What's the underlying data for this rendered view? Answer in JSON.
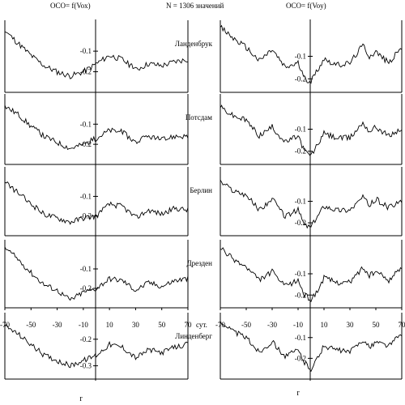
{
  "header": {
    "left": "OCO= f(Vox)",
    "center": "N = 1306 значений",
    "right": "OCO= f(Voy)"
  },
  "footer": {
    "left": "r",
    "right": "r"
  },
  "chart_data": [
    {
      "type": "line",
      "panel": "left",
      "x_unit": "сут.",
      "x_ticks": [
        -70,
        -50,
        -30,
        -10,
        10,
        30,
        50,
        70
      ],
      "x_tick_labels": [
        "-70",
        "-50",
        "-30",
        "-10",
        "10",
        "30",
        "50",
        "70"
      ],
      "rows": [
        {
          "station": "Ланденбрук",
          "y_ticks": [
            -0.1,
            -0.2
          ],
          "y_tick_labels": [
            "-0.1",
            "-0.2"
          ],
          "ylim": [
            -0.3,
            0.05
          ],
          "anchors": [
            [
              -70,
              0.0
            ],
            [
              -60,
              -0.06
            ],
            [
              -50,
              -0.12
            ],
            [
              -40,
              -0.17
            ],
            [
              -30,
              -0.2
            ],
            [
              -20,
              -0.22
            ],
            [
              -10,
              -0.2
            ],
            [
              0,
              -0.16
            ],
            [
              10,
              -0.12
            ],
            [
              20,
              -0.14
            ],
            [
              30,
              -0.19
            ],
            [
              40,
              -0.16
            ],
            [
              50,
              -0.17
            ],
            [
              60,
              -0.15
            ],
            [
              70,
              -0.14
            ]
          ]
        },
        {
          "station": "Потсдам",
          "y_ticks": [
            -0.1,
            -0.2
          ],
          "y_tick_labels": [
            "-0.1",
            "-0.2"
          ],
          "ylim": [
            -0.3,
            0.05
          ],
          "anchors": [
            [
              -70,
              -0.01
            ],
            [
              -60,
              -0.05
            ],
            [
              -50,
              -0.11
            ],
            [
              -40,
              -0.16
            ],
            [
              -30,
              -0.19
            ],
            [
              -20,
              -0.22
            ],
            [
              -10,
              -0.2
            ],
            [
              0,
              -0.17
            ],
            [
              10,
              -0.13
            ],
            [
              20,
              -0.14
            ],
            [
              30,
              -0.19
            ],
            [
              40,
              -0.16
            ],
            [
              50,
              -0.18
            ],
            [
              60,
              -0.16
            ],
            [
              70,
              -0.16
            ]
          ]
        },
        {
          "station": "Берлин",
          "y_ticks": [
            -0.1,
            -0.2
          ],
          "y_tick_labels": [
            "-0.1",
            "-0.2"
          ],
          "ylim": [
            -0.3,
            0.05
          ],
          "anchors": [
            [
              -70,
              -0.03
            ],
            [
              -60,
              -0.08
            ],
            [
              -50,
              -0.14
            ],
            [
              -40,
              -0.19
            ],
            [
              -30,
              -0.21
            ],
            [
              -20,
              -0.23
            ],
            [
              -10,
              -0.21
            ],
            [
              0,
              -0.2
            ],
            [
              10,
              -0.14
            ],
            [
              20,
              -0.15
            ],
            [
              30,
              -0.21
            ],
            [
              40,
              -0.17
            ],
            [
              50,
              -0.19
            ],
            [
              60,
              -0.16
            ],
            [
              70,
              -0.17
            ]
          ]
        },
        {
          "station": "Дрезден",
          "y_ticks": [
            -0.1,
            -0.2
          ],
          "y_tick_labels": [
            "-0.1",
            "-0.2"
          ],
          "ylim": [
            -0.3,
            0.05
          ],
          "anchors": [
            [
              -70,
              0.01
            ],
            [
              -60,
              -0.05
            ],
            [
              -50,
              -0.12
            ],
            [
              -40,
              -0.18
            ],
            [
              -30,
              -0.21
            ],
            [
              -20,
              -0.26
            ],
            [
              -10,
              -0.22
            ],
            [
              0,
              -0.2
            ],
            [
              10,
              -0.15
            ],
            [
              20,
              -0.16
            ],
            [
              30,
              -0.21
            ],
            [
              40,
              -0.17
            ],
            [
              50,
              -0.19
            ],
            [
              60,
              -0.16
            ],
            [
              70,
              -0.15
            ]
          ]
        },
        {
          "station": "Линденберг",
          "y_ticks": [
            -0.2,
            -0.3
          ],
          "y_tick_labels": [
            "-0.2",
            "-0.3"
          ],
          "ylim": [
            -0.35,
            -0.1
          ],
          "anchors": [
            [
              -70,
              -0.15
            ],
            [
              -60,
              -0.18
            ],
            [
              -50,
              -0.22
            ],
            [
              -40,
              -0.26
            ],
            [
              -30,
              -0.28
            ],
            [
              -20,
              -0.3
            ],
            [
              -10,
              -0.28
            ],
            [
              0,
              -0.26
            ],
            [
              10,
              -0.22
            ],
            [
              20,
              -0.23
            ],
            [
              30,
              -0.27
            ],
            [
              40,
              -0.24
            ],
            [
              50,
              -0.25
            ],
            [
              60,
              -0.23
            ],
            [
              70,
              -0.22
            ]
          ]
        }
      ]
    },
    {
      "type": "line",
      "panel": "right",
      "x_ticks": [
        -70,
        -50,
        -30,
        -10,
        10,
        30,
        50,
        70
      ],
      "x_tick_labels": [
        "-70",
        "-50",
        "-30",
        "-10",
        "10",
        "30",
        "50",
        "70"
      ],
      "rows": [
        {
          "station": "Ланденбрук",
          "y_ticks": [
            -0.1,
            -0.2
          ],
          "y_tick_labels": [
            "-0.1",
            "-0.2"
          ],
          "ylim": [
            -0.26,
            0.06
          ],
          "anchors": [
            [
              -70,
              0.03
            ],
            [
              -60,
              -0.02
            ],
            [
              -50,
              -0.06
            ],
            [
              -40,
              -0.12
            ],
            [
              -30,
              -0.07
            ],
            [
              -20,
              -0.15
            ],
            [
              -10,
              -0.13
            ],
            [
              -5,
              -0.2
            ],
            [
              0,
              -0.21
            ],
            [
              5,
              -0.16
            ],
            [
              10,
              -0.11
            ],
            [
              20,
              -0.14
            ],
            [
              30,
              -0.13
            ],
            [
              40,
              -0.05
            ],
            [
              45,
              -0.1
            ],
            [
              50,
              -0.08
            ],
            [
              60,
              -0.13
            ],
            [
              70,
              -0.06
            ]
          ]
        },
        {
          "station": "Потсдам",
          "y_ticks": [
            -0.1,
            -0.2
          ],
          "y_tick_labels": [
            "-0.1",
            "-0.2"
          ],
          "ylim": [
            -0.26,
            0.06
          ],
          "anchors": [
            [
              -70,
              0.0
            ],
            [
              -60,
              -0.04
            ],
            [
              -50,
              -0.06
            ],
            [
              -40,
              -0.13
            ],
            [
              -30,
              -0.09
            ],
            [
              -20,
              -0.16
            ],
            [
              -10,
              -0.13
            ],
            [
              -5,
              -0.2
            ],
            [
              0,
              -0.22
            ],
            [
              5,
              -0.17
            ],
            [
              10,
              -0.12
            ],
            [
              20,
              -0.14
            ],
            [
              30,
              -0.14
            ],
            [
              40,
              -0.07
            ],
            [
              45,
              -0.11
            ],
            [
              50,
              -0.09
            ],
            [
              60,
              -0.13
            ],
            [
              70,
              -0.1
            ]
          ]
        },
        {
          "station": "Берлин",
          "y_ticks": [
            -0.1,
            -0.2
          ],
          "y_tick_labels": [
            "-0.1",
            "-0.2"
          ],
          "ylim": [
            -0.26,
            0.06
          ],
          "anchors": [
            [
              -70,
              -0.01
            ],
            [
              -60,
              -0.05
            ],
            [
              -50,
              -0.07
            ],
            [
              -40,
              -0.14
            ],
            [
              -30,
              -0.09
            ],
            [
              -20,
              -0.17
            ],
            [
              -10,
              -0.14
            ],
            [
              -5,
              -0.21
            ],
            [
              0,
              -0.22
            ],
            [
              5,
              -0.17
            ],
            [
              10,
              -0.12
            ],
            [
              20,
              -0.14
            ],
            [
              30,
              -0.14
            ],
            [
              40,
              -0.08
            ],
            [
              45,
              -0.12
            ],
            [
              50,
              -0.09
            ],
            [
              60,
              -0.13
            ],
            [
              70,
              -0.1
            ]
          ]
        },
        {
          "station": "Дрезден",
          "y_ticks": [
            -0.1,
            -0.2
          ],
          "y_tick_labels": [
            "-0.1",
            "-0.2"
          ],
          "ylim": [
            -0.26,
            0.06
          ],
          "anchors": [
            [
              -70,
              0.02
            ],
            [
              -60,
              -0.03
            ],
            [
              -50,
              -0.07
            ],
            [
              -40,
              -0.13
            ],
            [
              -30,
              -0.09
            ],
            [
              -20,
              -0.16
            ],
            [
              -10,
              -0.13
            ],
            [
              -5,
              -0.2
            ],
            [
              0,
              -0.22
            ],
            [
              5,
              -0.18
            ],
            [
              10,
              -0.12
            ],
            [
              20,
              -0.14
            ],
            [
              30,
              -0.14
            ],
            [
              40,
              -0.07
            ],
            [
              45,
              -0.11
            ],
            [
              50,
              -0.09
            ],
            [
              60,
              -0.13
            ],
            [
              70,
              -0.07
            ]
          ]
        },
        {
          "station": "Линденберг",
          "y_ticks": [
            -0.1,
            -0.2
          ],
          "y_tick_labels": [
            "-0.1",
            "-0.2"
          ],
          "ylim": [
            -0.3,
            0.02
          ],
          "anchors": [
            [
              -70,
              -0.02
            ],
            [
              -60,
              -0.07
            ],
            [
              -50,
              -0.1
            ],
            [
              -40,
              -0.17
            ],
            [
              -30,
              -0.12
            ],
            [
              -20,
              -0.19
            ],
            [
              -10,
              -0.16
            ],
            [
              -5,
              -0.22
            ],
            [
              0,
              -0.25
            ],
            [
              5,
              -0.2
            ],
            [
              10,
              -0.14
            ],
            [
              20,
              -0.16
            ],
            [
              30,
              -0.17
            ],
            [
              40,
              -0.11
            ],
            [
              45,
              -0.15
            ],
            [
              50,
              -0.12
            ],
            [
              60,
              -0.14
            ],
            [
              70,
              -0.08
            ]
          ]
        }
      ]
    }
  ]
}
